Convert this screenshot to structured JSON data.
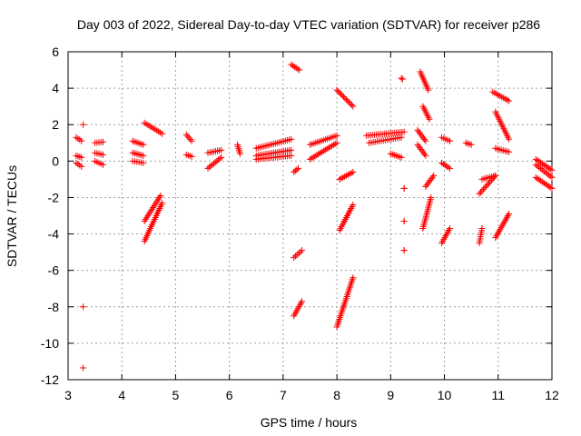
{
  "chart_data": {
    "type": "scatter",
    "title": "Day 003 of 2022, Sidereal Day-to-day VTEC variation (SDTVAR) for receiver p286",
    "xlabel": "GPS time / hours",
    "ylabel": "SDTVAR / TECUs",
    "xlim": [
      3,
      12
    ],
    "ylim": [
      -12,
      6
    ],
    "xticks": [
      3,
      4,
      5,
      6,
      7,
      8,
      9,
      10,
      11,
      12
    ],
    "yticks": [
      -12,
      -10,
      -8,
      -6,
      -4,
      -2,
      0,
      2,
      4,
      6
    ],
    "grid": true,
    "marker": "+",
    "color": "#ff0000",
    "series": [
      {
        "name": "SDTVAR",
        "segments": [
          {
            "x": [
              3.15,
              3.25
            ],
            "y": [
              1.3,
              1.1
            ]
          },
          {
            "x": [
              3.15,
              3.25
            ],
            "y": [
              0.3,
              0.2
            ]
          },
          {
            "x": [
              3.15,
              3.25
            ],
            "y": [
              -0.1,
              -0.3
            ]
          },
          {
            "x": [
              3.5,
              3.65
            ],
            "y": [
              1.0,
              1.05
            ]
          },
          {
            "x": [
              3.5,
              3.65
            ],
            "y": [
              0.45,
              0.35
            ]
          },
          {
            "x": [
              3.5,
              3.65
            ],
            "y": [
              0.0,
              -0.2
            ]
          },
          {
            "x": [
              4.2,
              4.4
            ],
            "y": [
              1.1,
              0.9
            ]
          },
          {
            "x": [
              4.2,
              4.4
            ],
            "y": [
              0.45,
              0.3
            ]
          },
          {
            "x": [
              4.2,
              4.4
            ],
            "y": [
              0.0,
              -0.1
            ]
          },
          {
            "x": [
              4.42,
              4.75
            ],
            "y": [
              2.1,
              1.5
            ]
          },
          {
            "x": [
              4.42,
              4.72
            ],
            "y": [
              -3.3,
              -1.9
            ]
          },
          {
            "x": [
              4.42,
              4.75
            ],
            "y": [
              -4.4,
              -2.3
            ]
          },
          {
            "x": [
              5.2,
              5.3
            ],
            "y": [
              1.45,
              1.1
            ]
          },
          {
            "x": [
              5.2,
              5.3
            ],
            "y": [
              0.35,
              0.25
            ]
          },
          {
            "x": [
              5.6,
              5.85
            ],
            "y": [
              0.45,
              0.6
            ]
          },
          {
            "x": [
              5.6,
              5.85
            ],
            "y": [
              -0.4,
              0.2
            ]
          },
          {
            "x": [
              6.15,
              6.2
            ],
            "y": [
              0.9,
              0.4
            ]
          },
          {
            "x": [
              6.5,
              7.15
            ],
            "y": [
              0.7,
              1.2
            ]
          },
          {
            "x": [
              6.5,
              7.15
            ],
            "y": [
              0.3,
              0.6
            ]
          },
          {
            "x": [
              6.5,
              7.15
            ],
            "y": [
              0.1,
              0.3
            ]
          },
          {
            "x": [
              7.15,
              7.3
            ],
            "y": [
              5.3,
              5.0
            ]
          },
          {
            "x": [
              7.2,
              7.28
            ],
            "y": [
              -0.6,
              -0.4
            ]
          },
          {
            "x": [
              7.2,
              7.35
            ],
            "y": [
              -5.3,
              -4.9
            ]
          },
          {
            "x": [
              7.2,
              7.35
            ],
            "y": [
              -8.5,
              -7.7
            ]
          },
          {
            "x": [
              7.5,
              8.0
            ],
            "y": [
              0.9,
              1.4
            ]
          },
          {
            "x": [
              7.5,
              8.0
            ],
            "y": [
              0.1,
              1.0
            ]
          },
          {
            "x": [
              8.0,
              8.3
            ],
            "y": [
              3.9,
              3.0
            ]
          },
          {
            "x": [
              8.05,
              8.3
            ],
            "y": [
              -1.0,
              -0.6
            ]
          },
          {
            "x": [
              8.05,
              8.3
            ],
            "y": [
              -3.8,
              -2.4
            ]
          },
          {
            "x": [
              8.0,
              8.3
            ],
            "y": [
              -9.1,
              -6.4
            ]
          },
          {
            "x": [
              8.55,
              9.25
            ],
            "y": [
              1.4,
              1.6
            ]
          },
          {
            "x": [
              8.6,
              9.2
            ],
            "y": [
              1.0,
              1.3
            ]
          },
          {
            "x": [
              9.0,
              9.2
            ],
            "y": [
              0.4,
              0.2
            ]
          },
          {
            "x": [
              9.2,
              9.22
            ],
            "y": [
              4.55,
              4.5
            ]
          },
          {
            "x": [
              9.25,
              9.25
            ],
            "y": [
              -1.5,
              -1.5
            ]
          },
          {
            "x": [
              9.25,
              9.25
            ],
            "y": [
              -3.3,
              -3.3
            ]
          },
          {
            "x": [
              9.25,
              9.25
            ],
            "y": [
              -4.9,
              -4.9
            ]
          },
          {
            "x": [
              9.55,
              9.7
            ],
            "y": [
              4.9,
              3.9
            ]
          },
          {
            "x": [
              9.6,
              9.72
            ],
            "y": [
              3.0,
              2.3
            ]
          },
          {
            "x": [
              9.5,
              9.65
            ],
            "y": [
              1.7,
              1.1
            ]
          },
          {
            "x": [
              9.5,
              9.65
            ],
            "y": [
              0.9,
              0.3
            ]
          },
          {
            "x": [
              9.65,
              9.8
            ],
            "y": [
              -1.4,
              -0.8
            ]
          },
          {
            "x": [
              9.6,
              9.75
            ],
            "y": [
              -3.7,
              -2.0
            ]
          },
          {
            "x": [
              9.95,
              10.1
            ],
            "y": [
              1.3,
              1.1
            ]
          },
          {
            "x": [
              9.95,
              10.1
            ],
            "y": [
              -0.1,
              -0.4
            ]
          },
          {
            "x": [
              9.95,
              10.1
            ],
            "y": [
              -4.5,
              -3.7
            ]
          },
          {
            "x": [
              10.4,
              10.5
            ],
            "y": [
              1.0,
              0.9
            ]
          },
          {
            "x": [
              10.65,
              10.95
            ],
            "y": [
              -1.8,
              -0.8
            ]
          },
          {
            "x": [
              10.7,
              10.95
            ],
            "y": [
              -1.0,
              -0.8
            ]
          },
          {
            "x": [
              10.65,
              10.7
            ],
            "y": [
              -4.5,
              -3.7
            ]
          },
          {
            "x": [
              10.9,
              11.2
            ],
            "y": [
              3.8,
              3.3
            ]
          },
          {
            "x": [
              10.95,
              11.2
            ],
            "y": [
              2.7,
              1.2
            ]
          },
          {
            "x": [
              10.95,
              11.2
            ],
            "y": [
              0.7,
              0.5
            ]
          },
          {
            "x": [
              10.95,
              11.2
            ],
            "y": [
              -4.2,
              -2.9
            ]
          },
          {
            "x": [
              11.7,
              12.0
            ],
            "y": [
              0.1,
              -0.5
            ]
          },
          {
            "x": [
              11.7,
              12.0
            ],
            "y": [
              -0.2,
              -0.9
            ]
          },
          {
            "x": [
              11.7,
              12.0
            ],
            "y": [
              -0.9,
              -1.5
            ]
          }
        ],
        "points": [
          {
            "x": 3.28,
            "y": 2.0
          },
          {
            "x": 3.28,
            "y": -8.0
          },
          {
            "x": 3.28,
            "y": -11.35
          }
        ]
      }
    ]
  }
}
